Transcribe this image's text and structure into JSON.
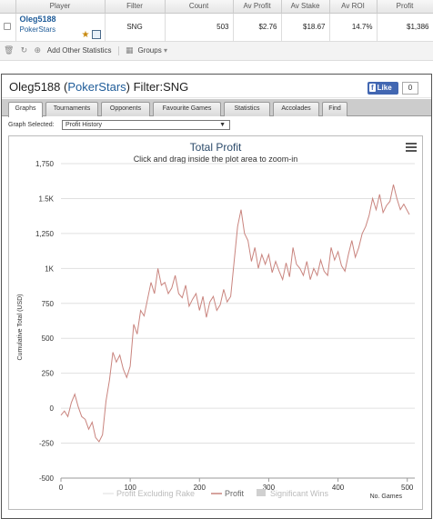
{
  "table": {
    "headers": [
      "",
      "Player",
      "Filter",
      "Count",
      "Av Profit",
      "Av Stake",
      "Av ROI",
      "Profit"
    ],
    "row": {
      "player_name": "Oleg5188",
      "player_site": "PokerStars",
      "filter": "SNG",
      "count": "503",
      "av_profit": "$2.76",
      "av_stake": "$18.67",
      "av_roi": "14.7%",
      "profit": "$1,386"
    },
    "toolbar": {
      "add_stats_label": "Add Other Statistics",
      "groups_label": "Groups"
    }
  },
  "window": {
    "title_name": "Oleg5188",
    "title_site": "PokerStars",
    "title_filter": "Filter:SNG",
    "fb_like": "Like",
    "fb_count": "0",
    "tabs": [
      "Graphs",
      "Tournaments",
      "Opponents",
      "Favourite Games",
      "Statistics",
      "Accolades",
      "Find"
    ],
    "graph_selected_label": "Graph Selected:",
    "graph_selected_value": "Profit History"
  },
  "chart_data": {
    "type": "line",
    "title": "Total Profit",
    "subtitle": "Click and drag inside the plot area to zoom-in",
    "ylabel": "Cumulative Total (USD)",
    "xlabel": "No. Games",
    "ylim": [
      -500,
      1750
    ],
    "xlim": [
      0,
      503
    ],
    "y_ticks": [
      "-500",
      "-250",
      "0",
      "250",
      "500",
      "750",
      "1K",
      "1,250",
      "1.5K",
      "1,750"
    ],
    "x_ticks": [
      "0",
      "100",
      "200",
      "300",
      "400",
      "500"
    ],
    "grid": "horizontal",
    "legend_position": "bottom",
    "legend": [
      "Profit Excluding Rake",
      "Profit",
      "Significant Wins"
    ],
    "series": [
      {
        "name": "Profit",
        "color": "#c9847e",
        "x": [
          0,
          5,
          10,
          15,
          20,
          25,
          30,
          35,
          40,
          45,
          50,
          55,
          60,
          65,
          70,
          75,
          80,
          85,
          90,
          95,
          100,
          105,
          110,
          115,
          120,
          125,
          130,
          135,
          140,
          145,
          150,
          155,
          160,
          165,
          170,
          175,
          180,
          185,
          190,
          195,
          200,
          205,
          210,
          215,
          220,
          225,
          230,
          235,
          240,
          245,
          250,
          255,
          260,
          265,
          270,
          275,
          280,
          285,
          290,
          295,
          300,
          305,
          310,
          315,
          320,
          325,
          330,
          335,
          340,
          345,
          350,
          355,
          360,
          365,
          370,
          375,
          380,
          385,
          390,
          395,
          400,
          405,
          410,
          415,
          420,
          425,
          430,
          435,
          440,
          445,
          450,
          455,
          460,
          465,
          470,
          475,
          480,
          485,
          490,
          495,
          503
        ],
        "y": [
          -50,
          -20,
          -60,
          40,
          100,
          10,
          -60,
          -80,
          -150,
          -100,
          -210,
          -240,
          -190,
          50,
          200,
          400,
          330,
          380,
          280,
          220,
          300,
          600,
          530,
          700,
          660,
          780,
          900,
          820,
          1000,
          880,
          900,
          820,
          860,
          950,
          820,
          790,
          880,
          730,
          780,
          820,
          700,
          800,
          650,
          760,
          800,
          700,
          740,
          850,
          760,
          800,
          1050,
          1300,
          1420,
          1250,
          1200,
          1050,
          1150,
          1000,
          1100,
          1030,
          1100,
          970,
          1050,
          980,
          920,
          1040,
          940,
          1150,
          1030,
          1000,
          950,
          1050,
          920,
          1000,
          950,
          1060,
          980,
          950,
          1150,
          1060,
          1120,
          1020,
          980,
          1100,
          1200,
          1080,
          1150,
          1250,
          1300,
          1380,
          1500,
          1420,
          1530,
          1400,
          1450,
          1480,
          1600,
          1500,
          1420,
          1460,
          1386
        ]
      }
    ],
    "colors": {
      "profit": "#c9847e",
      "profit_excl_rake": "#e8e8e8",
      "significant_wins": "#d0d0d0",
      "title": "#2b4a6a"
    }
  }
}
